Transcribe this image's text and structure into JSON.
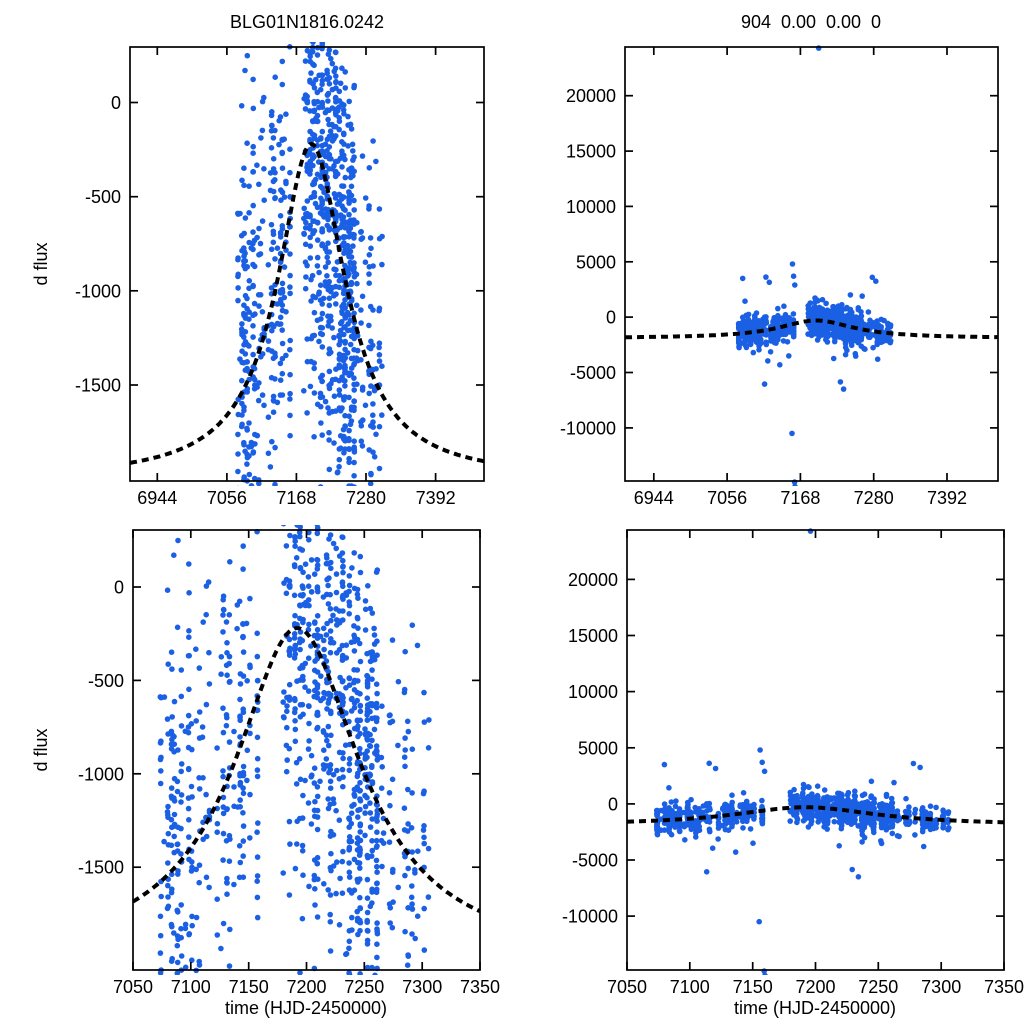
{
  "labels": {
    "ylabel": "d flux",
    "xlabel": "time (HJD-2450000)"
  },
  "colors": {
    "background": "#ffffff",
    "axis": "#000000",
    "text": "#000000",
    "marker": "#1b60e4",
    "curve": "#000000"
  },
  "axis_style": {
    "border_width": 1.7,
    "tick_length": 8,
    "tick_width": 1.7,
    "font_size": 18,
    "clip_margin": 5
  },
  "chart_data": {
    "type": "scatter",
    "description": "Microlensing event difference-flux light curve with dashed model fit; left column is flux-zoomed view, bottom row is time-zoomed view (7050-7350).",
    "panels": [
      {
        "id": "top-left",
        "title": "BLG01N1816.0242",
        "ylabel": "d flux",
        "xlabel": "",
        "rect": {
          "l": 130,
          "t": 47,
          "r": 484,
          "b": 481
        },
        "xlim": [
          6900,
          7470
        ],
        "ylim": [
          -2010,
          295
        ],
        "xticks": [
          6944,
          7056,
          7168,
          7280,
          7392
        ],
        "yticks": [
          0,
          -500,
          -1000,
          -1500
        ],
        "curve": "left"
      },
      {
        "id": "top-right",
        "title": "904  0.00  0.00  0",
        "ylabel": "",
        "xlabel": "",
        "rect": {
          "l": 625,
          "t": 47,
          "r": 998,
          "b": 481
        },
        "xlim": [
          6900,
          7470
        ],
        "ylim": [
          -14800,
          24400
        ],
        "xticks": [
          6944,
          7056,
          7168,
          7280,
          7392
        ],
        "yticks": [
          20000,
          15000,
          10000,
          5000,
          0,
          -5000,
          -10000
        ],
        "curve": "right"
      },
      {
        "id": "bottom-left",
        "title": "",
        "ylabel": "d flux",
        "xlabel": "time (HJD-2450000)",
        "rect": {
          "l": 133,
          "t": 530,
          "r": 480,
          "b": 970
        },
        "xlim": [
          7050,
          7350
        ],
        "ylim": [
          -2050,
          305
        ],
        "xticks": [
          7050,
          7100,
          7150,
          7200,
          7250,
          7300,
          7350
        ],
        "yticks": [
          0,
          -500,
          -1000,
          -1500
        ],
        "curve": "left"
      },
      {
        "id": "bottom-right",
        "title": "",
        "ylabel": "",
        "xlabel": "time (HJD-2450000)",
        "rect": {
          "l": 627,
          "t": 530,
          "r": 1004,
          "b": 970
        },
        "xlim": [
          7050,
          7350
        ],
        "ylim": [
          -14800,
          24400
        ],
        "xticks": [
          7050,
          7100,
          7150,
          7200,
          7250,
          7300,
          7350
        ],
        "yticks": [
          20000,
          15000,
          10000,
          5000,
          0,
          -5000,
          -10000
        ],
        "curve": "right"
      }
    ],
    "curves": {
      "left": {
        "base": -2000,
        "amp": 1780,
        "t0": 7192,
        "width": 66
      },
      "right": {
        "base": -1900,
        "amp": 1600,
        "t0": 7192,
        "width": 70
      },
      "style": {
        "color": "#000000",
        "line_width": 4,
        "dash": [
          7,
          5
        ]
      }
    },
    "scatter": {
      "marker_color": "#1b60e4",
      "marker_radius": 2.8,
      "seed": 971204,
      "sigma": 640,
      "tail_fraction": 0.025,
      "tail_sigma": 1900,
      "night_offset_sigma": 150,
      "night_width_days": 0.8,
      "night_skip_prob": 0.1,
      "segments": [
        {
          "t_start": 7071,
          "t_end": 7158,
          "spacing_min": 2.0,
          "spacing_max": 4.0,
          "count_min": 3,
          "count_max": 28
        },
        {
          "t_start": 7180,
          "t_end": 7262,
          "spacing_min": 1.6,
          "spacing_max": 3.0,
          "count_min": 8,
          "count_max": 48
        },
        {
          "t_start": 7264,
          "t_end": 7309,
          "spacing_min": 1.8,
          "spacing_max": 3.6,
          "count_min": 4,
          "count_max": 26
        }
      ],
      "outliers": [
        [
          7196.0,
          24300
        ],
        [
          7155.2,
          -10500
        ],
        [
          7159.2,
          -14900
        ],
        [
          7159.8,
          -15300
        ],
        [
          7079.8,
          3500
        ],
        [
          7120.5,
          3150
        ],
        [
          7155.9,
          4800
        ],
        [
          7157.6,
          3700
        ],
        [
          7159.5,
          2900
        ],
        [
          7277.9,
          3600
        ],
        [
          7283.2,
          3250
        ],
        [
          7262.5,
          1900
        ],
        [
          7113.4,
          -6050
        ],
        [
          7229.2,
          -5850
        ],
        [
          7234.1,
          -6500
        ],
        [
          7136.5,
          -4300
        ],
        [
          7118.2,
          -3950
        ],
        [
          7150.3,
          -3500
        ],
        [
          7286.1,
          -3800
        ],
        [
          7252.0,
          -3300
        ],
        [
          7096.0,
          -3200
        ]
      ]
    }
  }
}
